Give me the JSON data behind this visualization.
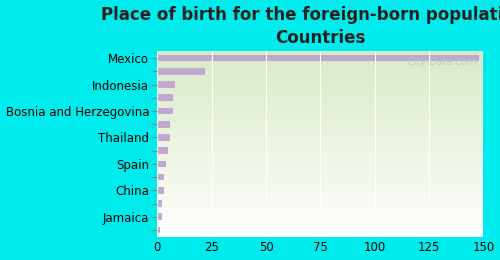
{
  "title": "Place of birth for the foreign-born population -\nCountries",
  "categories": [
    "Mexico",
    "",
    "Indonesia",
    "",
    "Bosnia and Herzegovina",
    "",
    "Thailand",
    "",
    "Spain",
    "",
    "China",
    "",
    "Jamaica",
    ""
  ],
  "values": [
    148,
    22,
    8,
    7,
    7,
    6,
    6,
    5,
    4,
    3,
    3,
    2,
    2,
    1
  ],
  "bar_color": "#c0a8d0",
  "background_color": "#00ebeb",
  "plot_bg_top": "#ffffff",
  "plot_bg_bottom": "#d8e8c8",
  "xlim": [
    0,
    150
  ],
  "xticks": [
    0,
    25,
    50,
    75,
    100,
    125,
    150
  ],
  "title_fontsize": 12,
  "tick_fontsize": 8.5,
  "watermark": "City-Data.com",
  "title_color": "#222222"
}
